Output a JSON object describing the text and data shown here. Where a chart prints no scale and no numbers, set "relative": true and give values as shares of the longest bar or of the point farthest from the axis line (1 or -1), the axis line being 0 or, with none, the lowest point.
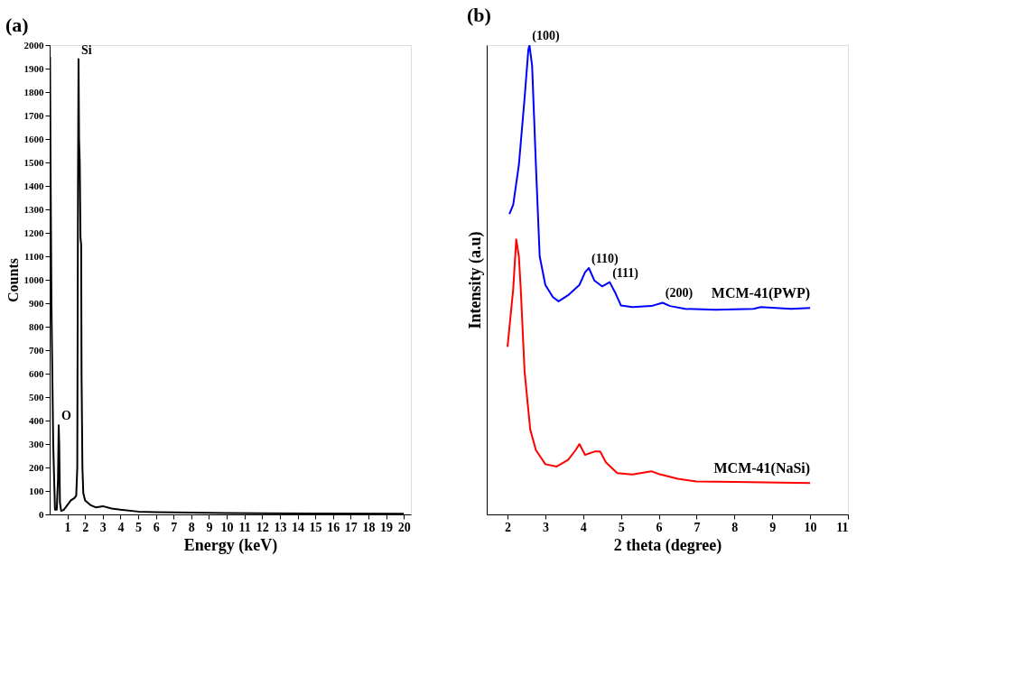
{
  "chart_data": [
    {
      "type": "line",
      "title": "(a)",
      "xlabel": "Energy (keV)",
      "ylabel": "Counts",
      "xlim": [
        0,
        20.4
      ],
      "ylim": [
        0,
        2000
      ],
      "xticks": [
        1,
        2,
        3,
        4,
        5,
        6,
        7,
        8,
        9,
        10,
        11,
        12,
        13,
        14,
        15,
        16,
        17,
        18,
        19,
        20
      ],
      "yticks": [
        0,
        100,
        200,
        300,
        400,
        500,
        600,
        700,
        800,
        900,
        1000,
        1100,
        1200,
        1300,
        1400,
        1500,
        1600,
        1700,
        1800,
        1900,
        2000
      ],
      "grid": false,
      "legend": false,
      "marker": "none",
      "line_style": "solid",
      "series": [
        {
          "color": "#000000",
          "x": [
            0.02,
            0.05,
            0.1,
            0.2,
            0.3,
            0.4,
            0.47,
            0.51,
            0.54,
            0.58,
            0.65,
            0.8,
            1.0,
            1.2,
            1.4,
            1.5,
            1.56,
            1.6,
            1.63,
            1.66,
            1.7,
            1.74,
            1.78,
            1.8,
            1.85,
            1.9,
            2.0,
            2.3,
            2.6,
            3.0,
            3.5,
            4,
            5,
            6,
            8,
            10,
            12,
            15,
            20
          ],
          "values": [
            1950,
            1500,
            900,
            300,
            20,
            20,
            150,
            380,
            300,
            50,
            15,
            20,
            40,
            60,
            70,
            80,
            200,
            1400,
            1940,
            1600,
            1500,
            1180,
            1150,
            600,
            200,
            90,
            60,
            40,
            30,
            35,
            25,
            20,
            12,
            10,
            8,
            6,
            5,
            4,
            3
          ]
        }
      ],
      "annotations": [
        {
          "text": "O",
          "x": 0.51,
          "y": 380
        },
        {
          "text": "Si",
          "x": 1.63,
          "y": 1940
        }
      ]
    },
    {
      "type": "line",
      "title": "(b)",
      "xlabel": "2 theta (degree)",
      "ylabel": "Intensity (a.u)",
      "xlim": [
        1.45,
        11
      ],
      "xticks": [
        2,
        3,
        4,
        5,
        6,
        7,
        8,
        9,
        10,
        11
      ],
      "relative": true,
      "grid": false,
      "legend": false,
      "marker": "none",
      "line_style": "solid",
      "series": [
        {
          "name": "MCM-41(PWP)",
          "color": "#0000ff",
          "x": [
            2.05,
            2.15,
            2.3,
            2.45,
            2.55,
            2.58,
            2.65,
            2.75,
            2.85,
            3.0,
            3.2,
            3.35,
            3.6,
            3.9,
            4.05,
            4.15,
            4.3,
            4.5,
            4.7,
            4.85,
            5.0,
            5.3,
            5.8,
            6.1,
            6.3,
            6.7,
            7.5,
            8.5,
            8.7,
            9.5,
            10
          ],
          "values": [
            0.64,
            0.66,
            0.745,
            0.886,
            0.99,
            1.0,
            0.956,
            0.745,
            0.55,
            0.489,
            0.463,
            0.454,
            0.467,
            0.489,
            0.516,
            0.525,
            0.498,
            0.486,
            0.495,
            0.472,
            0.445,
            0.442,
            0.444,
            0.451,
            0.444,
            0.438,
            0.436,
            0.438,
            0.442,
            0.438,
            0.44
          ]
        },
        {
          "name": "MCM-41(NaSi)",
          "color": "#ff0000",
          "x": [
            2.0,
            2.15,
            2.23,
            2.3,
            2.35,
            2.45,
            2.6,
            2.75,
            3.0,
            3.3,
            3.6,
            3.8,
            3.9,
            4.05,
            4.3,
            4.45,
            4.6,
            4.9,
            5.3,
            5.8,
            6.0,
            6.5,
            7,
            8,
            10
          ],
          "values": [
            0.357,
            0.48,
            0.586,
            0.55,
            0.48,
            0.305,
            0.181,
            0.137,
            0.107,
            0.102,
            0.116,
            0.137,
            0.15,
            0.127,
            0.134,
            0.134,
            0.111,
            0.088,
            0.085,
            0.092,
            0.086,
            0.076,
            0.07,
            0.069,
            0.067
          ]
        }
      ],
      "annotations": [
        {
          "text": "(100)",
          "x": 2.58,
          "y": 1.0
        },
        {
          "text": "(110)",
          "x": 4.15,
          "y": 0.525
        },
        {
          "text": "(111)",
          "x": 4.7,
          "y": 0.495
        },
        {
          "text": "(200)",
          "x": 6.1,
          "y": 0.451
        }
      ]
    }
  ]
}
